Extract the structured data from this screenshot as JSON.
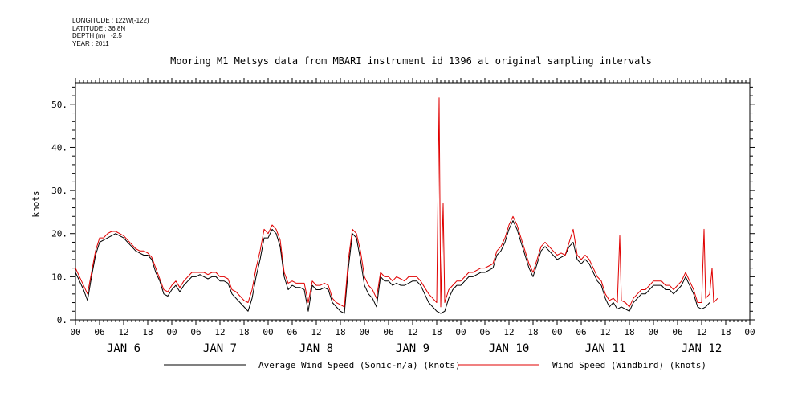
{
  "meta": {
    "longitude": "LONGITUDE : 122W(-122)",
    "latitude": "LATITUDE : 36.8N",
    "depth": "DEPTH (m) : -2.5",
    "year": "YEAR : 2011"
  },
  "chart_data": {
    "type": "line",
    "title": "Mooring M1 Metsys data from MBARI instrument id 1396 at original sampling intervals",
    "ylabel": "knots",
    "xlabel": "",
    "ylim": [
      0,
      55
    ],
    "yticks": [
      0,
      10,
      20,
      30,
      40,
      50
    ],
    "ytick_labels": [
      "0.",
      "10.",
      "20.",
      "30.",
      "40.",
      "50."
    ],
    "xlim_hours": [
      0,
      168
    ],
    "hour_tick_labels": [
      "00",
      "06",
      "12",
      "18",
      "00",
      "06",
      "12",
      "18",
      "00",
      "06",
      "12",
      "18",
      "00",
      "06",
      "12",
      "18",
      "00",
      "06",
      "12",
      "18",
      "00",
      "06",
      "12",
      "18",
      "00",
      "06",
      "12",
      "18",
      "00"
    ],
    "day_labels": [
      "JAN  6",
      "JAN  7",
      "JAN  8",
      "JAN  9",
      "JAN 10",
      "JAN 11",
      "JAN 12"
    ],
    "grid": false,
    "legend_position": "bottom",
    "series": [
      {
        "name": "Average Wind Speed (Sonic-n/a) (knots)",
        "color": "#000000",
        "points": [
          [
            0,
            11
          ],
          [
            1,
            9
          ],
          [
            2,
            7
          ],
          [
            3,
            4.5
          ],
          [
            4,
            10
          ],
          [
            5,
            15
          ],
          [
            6,
            18
          ],
          [
            7,
            18.5
          ],
          [
            8,
            19
          ],
          [
            9,
            19.5
          ],
          [
            10,
            20
          ],
          [
            11,
            19.5
          ],
          [
            12,
            19
          ],
          [
            13,
            18
          ],
          [
            14,
            17
          ],
          [
            15,
            16
          ],
          [
            16,
            15.5
          ],
          [
            17,
            15
          ],
          [
            18,
            15
          ],
          [
            19,
            14
          ],
          [
            20,
            11
          ],
          [
            21,
            9
          ],
          [
            22,
            6
          ],
          [
            23,
            5.5
          ],
          [
            24,
            7
          ],
          [
            25,
            8
          ],
          [
            26,
            6.5
          ],
          [
            27,
            8
          ],
          [
            28,
            9
          ],
          [
            29,
            10
          ],
          [
            30,
            10
          ],
          [
            31,
            10.5
          ],
          [
            32,
            10
          ],
          [
            33,
            9.5
          ],
          [
            34,
            10
          ],
          [
            35,
            10
          ],
          [
            36,
            9
          ],
          [
            37,
            9
          ],
          [
            38,
            8.5
          ],
          [
            39,
            6
          ],
          [
            40,
            5
          ],
          [
            41,
            4
          ],
          [
            42,
            3
          ],
          [
            43,
            2
          ],
          [
            44,
            5
          ],
          [
            45,
            10
          ],
          [
            46,
            14
          ],
          [
            47,
            19
          ],
          [
            48,
            19
          ],
          [
            49,
            21
          ],
          [
            50,
            20
          ],
          [
            51,
            17
          ],
          [
            52,
            10
          ],
          [
            53,
            7
          ],
          [
            54,
            8
          ],
          [
            55,
            7.5
          ],
          [
            56,
            7.5
          ],
          [
            57,
            7
          ],
          [
            58,
            2
          ],
          [
            59,
            8
          ],
          [
            60,
            7
          ],
          [
            61,
            7
          ],
          [
            62,
            7.5
          ],
          [
            63,
            7
          ],
          [
            64,
            4
          ],
          [
            65,
            3
          ],
          [
            66,
            2
          ],
          [
            67,
            1.5
          ],
          [
            68,
            12
          ],
          [
            69,
            20
          ],
          [
            70,
            19
          ],
          [
            71,
            14
          ],
          [
            72,
            8
          ],
          [
            73,
            6
          ],
          [
            74,
            5
          ],
          [
            75,
            3
          ],
          [
            76,
            10
          ],
          [
            77,
            9
          ],
          [
            78,
            9
          ],
          [
            79,
            8
          ],
          [
            80,
            8.5
          ],
          [
            81,
            8
          ],
          [
            82,
            8
          ],
          [
            83,
            8.5
          ],
          [
            84,
            9
          ],
          [
            85,
            9
          ],
          [
            86,
            8
          ],
          [
            87,
            6
          ],
          [
            88,
            4
          ],
          [
            89,
            3
          ],
          [
            90,
            2
          ],
          [
            91,
            1.5
          ],
          [
            92,
            2
          ],
          [
            93,
            5
          ],
          [
            94,
            7
          ],
          [
            95,
            8
          ],
          [
            96,
            8
          ],
          [
            97,
            9
          ],
          [
            98,
            10
          ],
          [
            99,
            10
          ],
          [
            100,
            10.5
          ],
          [
            101,
            11
          ],
          [
            102,
            11
          ],
          [
            103,
            11.5
          ],
          [
            104,
            12
          ],
          [
            105,
            15
          ],
          [
            106,
            16
          ],
          [
            107,
            18
          ],
          [
            108,
            21
          ],
          [
            109,
            23
          ],
          [
            110,
            21
          ],
          [
            111,
            18
          ],
          [
            112,
            15
          ],
          [
            113,
            12
          ],
          [
            114,
            10
          ],
          [
            115,
            13
          ],
          [
            116,
            16
          ],
          [
            117,
            17
          ],
          [
            118,
            16
          ],
          [
            119,
            15
          ],
          [
            120,
            14
          ],
          [
            121,
            14.5
          ],
          [
            122,
            15
          ],
          [
            123,
            17
          ],
          [
            124,
            18
          ],
          [
            125,
            14
          ],
          [
            126,
            13
          ],
          [
            127,
            14
          ],
          [
            128,
            13
          ],
          [
            129,
            11
          ],
          [
            130,
            9
          ],
          [
            131,
            8
          ],
          [
            132,
            5
          ],
          [
            133,
            3
          ],
          [
            134,
            4
          ],
          [
            135,
            2.5
          ],
          [
            136,
            3
          ],
          [
            137,
            2.5
          ],
          [
            138,
            2
          ],
          [
            139,
            4
          ],
          [
            140,
            5
          ],
          [
            141,
            6
          ],
          [
            142,
            6
          ],
          [
            143,
            7
          ],
          [
            144,
            8
          ],
          [
            145,
            8
          ],
          [
            146,
            8
          ],
          [
            147,
            7
          ],
          [
            148,
            7
          ],
          [
            149,
            6
          ],
          [
            150,
            7
          ],
          [
            151,
            8
          ],
          [
            152,
            10
          ],
          [
            153,
            8
          ],
          [
            154,
            6
          ],
          [
            155,
            3
          ],
          [
            156,
            2.5
          ],
          [
            157,
            3
          ],
          [
            158,
            4
          ]
        ]
      },
      {
        "name": "Wind Speed (Windbird) (knots)",
        "color": "#e00000",
        "points": [
          [
            0,
            12
          ],
          [
            1,
            10
          ],
          [
            2,
            8
          ],
          [
            3,
            6
          ],
          [
            4,
            11
          ],
          [
            5,
            16
          ],
          [
            6,
            19
          ],
          [
            7,
            19
          ],
          [
            8,
            20
          ],
          [
            9,
            20.5
          ],
          [
            10,
            20.5
          ],
          [
            11,
            20
          ],
          [
            12,
            19.5
          ],
          [
            13,
            18.5
          ],
          [
            14,
            17.5
          ],
          [
            15,
            16.5
          ],
          [
            16,
            16
          ],
          [
            17,
            16
          ],
          [
            18,
            15.5
          ],
          [
            19,
            14.5
          ],
          [
            20,
            12
          ],
          [
            21,
            9.5
          ],
          [
            22,
            7
          ],
          [
            23,
            6.5
          ],
          [
            24,
            8
          ],
          [
            25,
            9
          ],
          [
            26,
            7.5
          ],
          [
            27,
            9
          ],
          [
            28,
            10
          ],
          [
            29,
            11
          ],
          [
            30,
            11
          ],
          [
            31,
            11
          ],
          [
            32,
            11
          ],
          [
            33,
            10.5
          ],
          [
            34,
            11
          ],
          [
            35,
            11
          ],
          [
            36,
            10
          ],
          [
            37,
            10
          ],
          [
            38,
            9.5
          ],
          [
            39,
            7
          ],
          [
            40,
            6.5
          ],
          [
            41,
            5.5
          ],
          [
            42,
            4.5
          ],
          [
            43,
            4
          ],
          [
            44,
            7
          ],
          [
            45,
            12
          ],
          [
            46,
            16
          ],
          [
            47,
            21
          ],
          [
            48,
            20
          ],
          [
            49,
            22
          ],
          [
            50,
            21
          ],
          [
            51,
            18.5
          ],
          [
            52,
            11
          ],
          [
            53,
            8.5
          ],
          [
            54,
            9
          ],
          [
            55,
            8.5
          ],
          [
            56,
            8.5
          ],
          [
            57,
            8.5
          ],
          [
            58,
            4
          ],
          [
            59,
            9
          ],
          [
            60,
            8
          ],
          [
            61,
            8
          ],
          [
            62,
            8.5
          ],
          [
            63,
            8
          ],
          [
            64,
            5
          ],
          [
            65,
            4
          ],
          [
            66,
            3.5
          ],
          [
            67,
            3
          ],
          [
            68,
            14
          ],
          [
            69,
            21
          ],
          [
            70,
            20
          ],
          [
            71,
            16
          ],
          [
            72,
            10
          ],
          [
            73,
            8
          ],
          [
            74,
            7
          ],
          [
            75,
            5
          ],
          [
            76,
            11
          ],
          [
            77,
            10
          ],
          [
            78,
            10
          ],
          [
            79,
            9
          ],
          [
            80,
            10
          ],
          [
            81,
            9.5
          ],
          [
            82,
            9
          ],
          [
            83,
            10
          ],
          [
            84,
            10
          ],
          [
            85,
            10
          ],
          [
            86,
            9
          ],
          [
            87,
            7.5
          ],
          [
            88,
            6
          ],
          [
            89,
            5
          ],
          [
            90,
            4
          ],
          [
            90.6,
            51.5
          ],
          [
            91,
            3
          ],
          [
            91.6,
            27
          ],
          [
            92,
            4
          ],
          [
            93,
            7
          ],
          [
            94,
            8
          ],
          [
            95,
            9
          ],
          [
            96,
            9
          ],
          [
            97,
            10
          ],
          [
            98,
            11
          ],
          [
            99,
            11
          ],
          [
            100,
            11.5
          ],
          [
            101,
            12
          ],
          [
            102,
            12
          ],
          [
            103,
            12.5
          ],
          [
            104,
            13
          ],
          [
            105,
            16
          ],
          [
            106,
            17
          ],
          [
            107,
            19
          ],
          [
            108,
            22
          ],
          [
            109,
            24
          ],
          [
            110,
            22
          ],
          [
            111,
            19
          ],
          [
            112,
            16
          ],
          [
            113,
            13
          ],
          [
            114,
            11
          ],
          [
            115,
            14
          ],
          [
            116,
            17
          ],
          [
            117,
            18
          ],
          [
            118,
            17
          ],
          [
            119,
            16
          ],
          [
            120,
            15
          ],
          [
            121,
            15.5
          ],
          [
            122,
            15
          ],
          [
            123,
            18
          ],
          [
            124,
            21
          ],
          [
            125,
            15
          ],
          [
            126,
            14
          ],
          [
            127,
            15
          ],
          [
            128,
            14
          ],
          [
            129,
            12
          ],
          [
            130,
            10
          ],
          [
            131,
            9
          ],
          [
            132,
            6
          ],
          [
            133,
            4.5
          ],
          [
            134,
            5
          ],
          [
            135,
            4
          ],
          [
            135.6,
            19.5
          ],
          [
            136,
            4.5
          ],
          [
            137,
            4
          ],
          [
            138,
            3
          ],
          [
            139,
            5
          ],
          [
            140,
            6
          ],
          [
            141,
            7
          ],
          [
            142,
            7
          ],
          [
            143,
            8
          ],
          [
            144,
            9
          ],
          [
            145,
            9
          ],
          [
            146,
            9
          ],
          [
            147,
            8
          ],
          [
            148,
            8
          ],
          [
            149,
            7
          ],
          [
            150,
            8
          ],
          [
            151,
            9
          ],
          [
            152,
            11
          ],
          [
            153,
            9
          ],
          [
            154,
            7
          ],
          [
            155,
            4
          ],
          [
            156,
            4
          ],
          [
            156.6,
            21
          ],
          [
            157,
            5
          ],
          [
            158,
            6
          ],
          [
            158.6,
            12
          ],
          [
            159,
            4
          ],
          [
            160,
            5
          ]
        ]
      }
    ]
  }
}
